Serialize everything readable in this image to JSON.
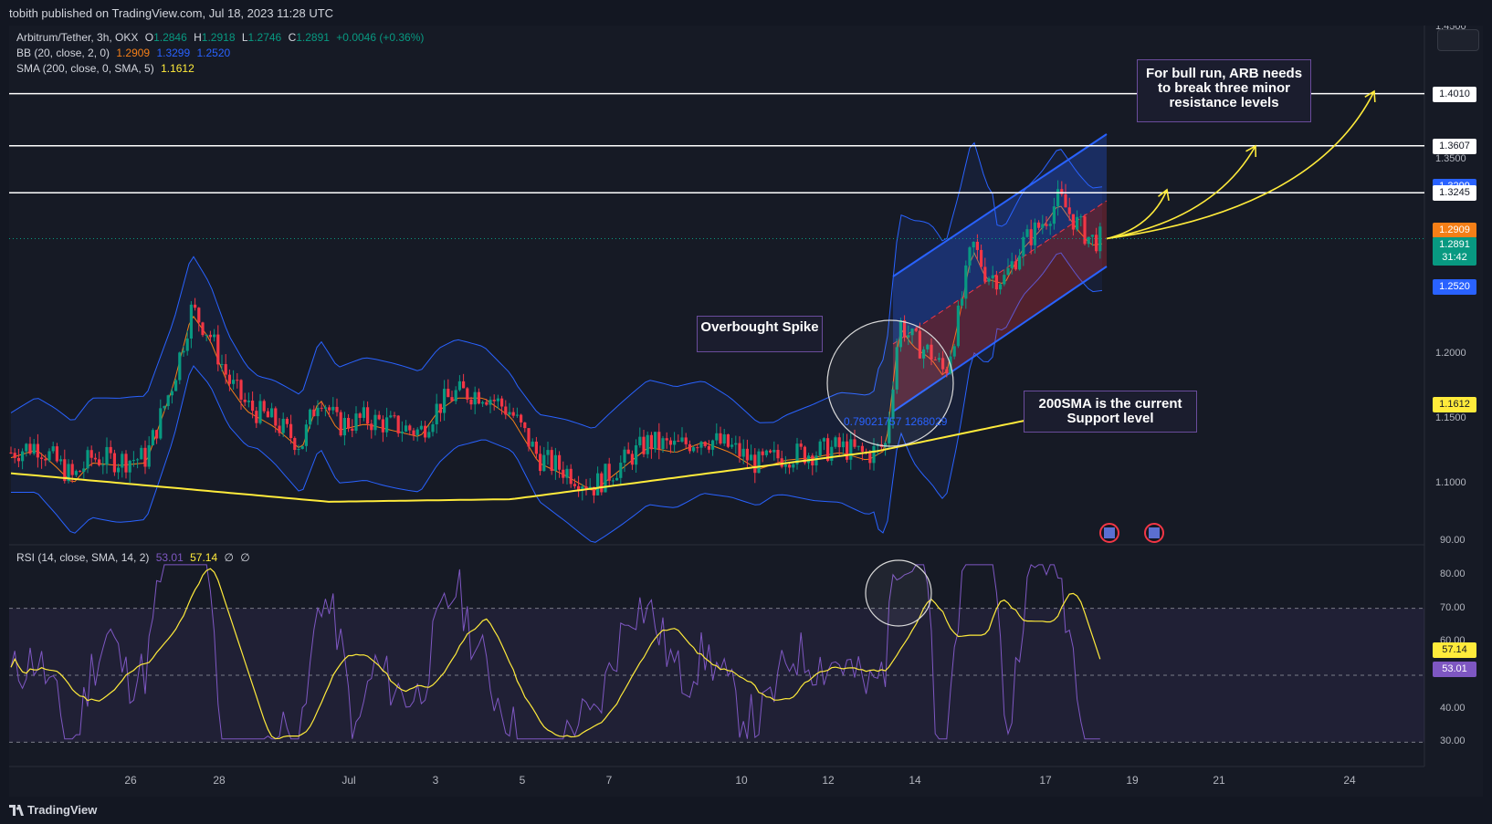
{
  "header": {
    "published": "tobith published on TradingView.com, Jul 18, 2023 11:28 UTC"
  },
  "legend": {
    "symbol": "Arbitrum/Tether, 3h, OKX",
    "o_label": "O",
    "o": "1.2846",
    "h_label": "H",
    "h": "1.2918",
    "l_label": "L",
    "l": "1.2746",
    "c_label": "C",
    "c": "1.2891",
    "change": "+0.0046 (+0.36%)",
    "bb_label": "BB (20, close, 2, 0)",
    "bb_basis": "1.2909",
    "bb_upper": "1.3299",
    "bb_lower": "1.2520",
    "sma_label": "SMA (200, close, 0, SMA, 5)",
    "sma_value": "1.1612",
    "rsi_label": "RSI (14, close, SMA, 14, 2)",
    "rsi_value": "53.01",
    "rsi_sma": "57.14",
    "rsi_extra1": "∅",
    "rsi_extra2": "∅"
  },
  "annotations": {
    "bull_run": "For bull run, ARB needs to break three minor resistance levels",
    "overbought": "Overbought Spike",
    "support": "200SMA is the current Support level",
    "fib_text": "0.79021757 1268029"
  },
  "price_scale": {
    "ticks": [
      "1.3500",
      "1.2000",
      "1.1500",
      "1.1000"
    ],
    "top_partial": "1.4500",
    "tags": [
      {
        "text": "1.4010",
        "bg": "#ffffff",
        "fg": "#131722"
      },
      {
        "text": "1.3607",
        "bg": "#ffffff",
        "fg": "#131722"
      },
      {
        "text": "1.3299",
        "bg": "#2962ff",
        "fg": "#ffffff"
      },
      {
        "text": "1.3245",
        "bg": "#ffffff",
        "fg": "#131722"
      },
      {
        "text": "1.2909",
        "bg": "#f57f17",
        "fg": "#ffffff"
      },
      {
        "text": "1.2891",
        "bg": "#089981",
        "fg": "#ffffff"
      },
      {
        "text": "31:42",
        "bg": "#089981",
        "fg": "#ffffff"
      },
      {
        "text": "1.2520",
        "bg": "#2962ff",
        "fg": "#ffffff"
      },
      {
        "text": "1.1612",
        "bg": "#ffeb3b",
        "fg": "#131722"
      }
    ]
  },
  "rsi_scale": {
    "ticks": [
      "90.00",
      "80.00",
      "70.00",
      "60.00",
      "50.00",
      "40.00",
      "30.00"
    ],
    "tags": [
      {
        "text": "57.14",
        "bg": "#ffeb3b",
        "fg": "#131722"
      },
      {
        "text": "53.01",
        "bg": "#7e57c2",
        "fg": "#ffffff"
      }
    ]
  },
  "time_axis": {
    "labels": [
      "26",
      "28",
      "Jul",
      "3",
      "5",
      "7",
      "10",
      "12",
      "14",
      "17",
      "19",
      "21",
      "24"
    ]
  },
  "footer": {
    "brand": "TradingView"
  },
  "colors": {
    "up": "#089981",
    "down": "#f23645",
    "bb_band": "#2962ff",
    "bb_basis": "#f57f17",
    "sma": "#ffeb3b",
    "rsi": "#7e57c2",
    "arrow": "#ffeb3b"
  },
  "chart_data": [
    {
      "type": "candlestick",
      "title": "Arbitrum/Tether, 3h, OKX",
      "ylim": [
        1.08,
        1.45
      ],
      "horizontal_levels": [
        1.401,
        1.3607,
        1.3245
      ],
      "last": {
        "open": 1.2846,
        "high": 1.2918,
        "low": 1.2746,
        "close": 1.2891
      },
      "series": [
        {
          "name": "BB (20, close, 2, 0)",
          "basis": 1.2909,
          "upper": 1.3299,
          "lower": 1.252
        },
        {
          "name": "SMA (200, close, 0, SMA, 5)",
          "last": 1.1612
        }
      ]
    },
    {
      "type": "line",
      "title": "RSI (14, close, SMA, 14, 2)",
      "ylim": [
        30,
        90
      ],
      "bands": [
        30,
        50,
        70
      ],
      "series": [
        {
          "name": "RSI",
          "last": 53.01
        },
        {
          "name": "SMA",
          "last": 57.14
        }
      ]
    }
  ]
}
